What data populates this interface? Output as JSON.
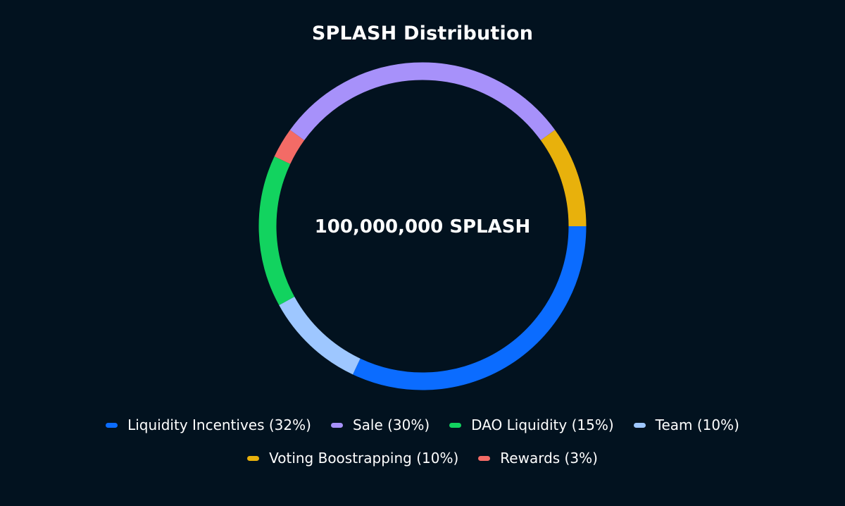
{
  "chart_data": {
    "type": "pie",
    "style": "donut",
    "title": "SPLASH Distribution",
    "center_text": "100,000,000 SPLASH",
    "slices": [
      {
        "label": "Liquidity Incentives (32%)",
        "value": 32,
        "color": "#0b6cff"
      },
      {
        "label": "Sale (30%)",
        "value": 30,
        "color": "#a791fa"
      },
      {
        "label": "DAO Liquidity (15%)",
        "value": 15,
        "color": "#12d35f"
      },
      {
        "label": "Team (10%)",
        "value": 10,
        "color": "#9ec7ff"
      },
      {
        "label": "Voting Boostrapping (10%)",
        "value": 10,
        "color": "#e8b10c"
      },
      {
        "label": "Rewards (3%)",
        "value": 3,
        "color": "#f36b66"
      }
    ],
    "ring_order_clockwise_from_3_oclock": [
      "Liquidity Incentives (32%)",
      "Team (10%)",
      "DAO Liquidity (15%)",
      "Rewards (3%)",
      "Sale (30%)",
      "Voting Boostrapping (10%)"
    ],
    "legend_position": "bottom",
    "legend_rows": [
      [
        "Liquidity Incentives (32%)",
        "Sale (30%)",
        "DAO Liquidity (15%)",
        "Team (10%)"
      ],
      [
        "Voting Boostrapping (10%)",
        "Rewards (3%)"
      ]
    ]
  }
}
